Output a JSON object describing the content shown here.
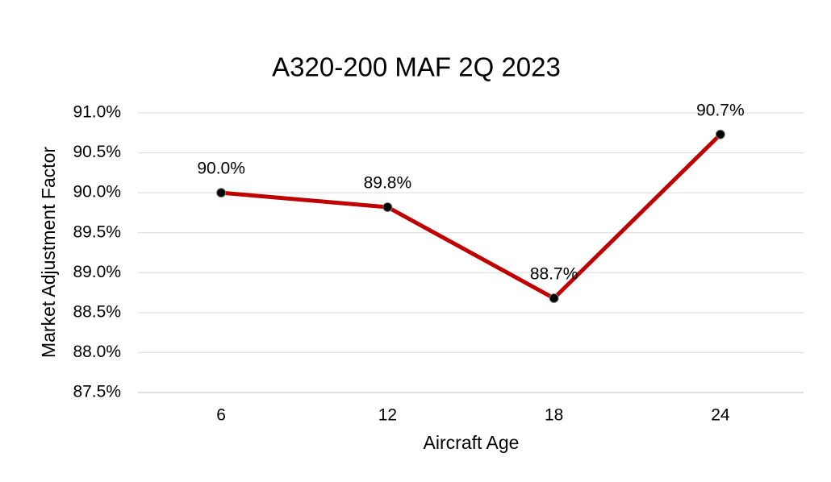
{
  "chart_data": {
    "type": "line",
    "title": "A320-200 MAF 2Q 2023",
    "x_label": "Aircraft Age",
    "y_label": "Market Adjustment Factor",
    "categories": [
      "6",
      "12",
      "18",
      "24"
    ],
    "values": [
      90.0,
      89.82,
      88.68,
      90.73
    ],
    "value_labels": [
      "90.0%",
      "89.8%",
      "88.7%",
      "90.7%"
    ],
    "color": "#c00000",
    "ylim": [
      87.5,
      91.0
    ],
    "yticks": [
      {
        "value": 87.5,
        "label": "87.5%"
      },
      {
        "value": 88.0,
        "label": "88.0%"
      },
      {
        "value": 88.5,
        "label": "88.5%"
      },
      {
        "value": 89.0,
        "label": "89.0%"
      },
      {
        "value": 89.5,
        "label": "89.5%"
      },
      {
        "value": 90.0,
        "label": "90.0%"
      },
      {
        "value": 90.5,
        "label": "90.5%"
      },
      {
        "value": 91.0,
        "label": "91.0%"
      }
    ],
    "grid": true
  }
}
